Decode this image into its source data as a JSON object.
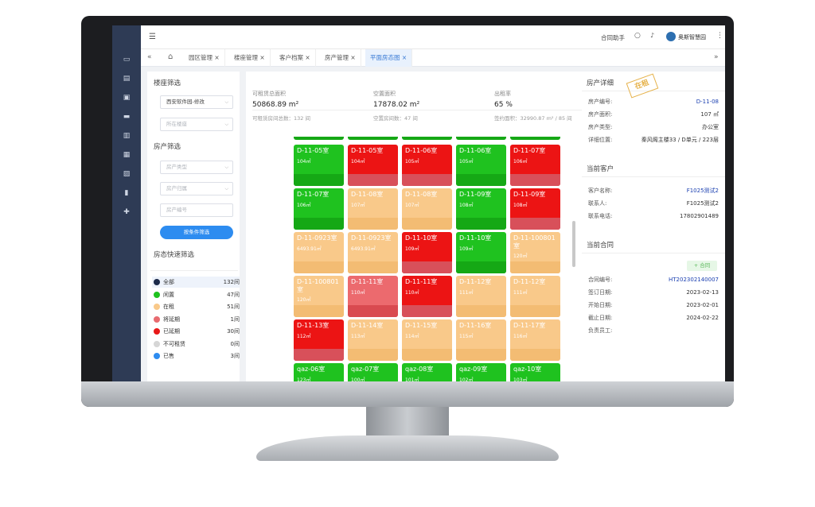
{
  "topbar": {
    "contract_assistant": "合同助手",
    "user_name": "奥斯智慧园"
  },
  "tabs": [
    {
      "label": "园区管理 ×"
    },
    {
      "label": "楼座管理 ×"
    },
    {
      "label": "客户档案 ×"
    },
    {
      "label": "房产管理 ×"
    },
    {
      "label": "平面房态图 ×"
    }
  ],
  "filters": {
    "building_title": "楼座筛选",
    "building_value": "西安软件园-修改",
    "floor_placeholder": "所在楼座",
    "property_title": "房产筛选",
    "type_placeholder": "房产类型",
    "owner_placeholder": "房产归属",
    "number_placeholder": "房产编号",
    "search_button": "按条件筛选",
    "quick_title": "房态快速筛选"
  },
  "legend": [
    {
      "label": "全部",
      "count": "132间",
      "color": "#1c2a4a"
    },
    {
      "label": "闲置",
      "count": "47间",
      "color": "#1fc21f"
    },
    {
      "label": "在租",
      "count": "51间",
      "color": "#f9c98a"
    },
    {
      "label": "将延期",
      "count": "1间",
      "color": "#e86b70"
    },
    {
      "label": "已延期",
      "count": "30间",
      "color": "#e81818"
    },
    {
      "label": "不可租赁",
      "count": "0间",
      "color": "#d6d6d6"
    },
    {
      "label": "已售",
      "count": "3间",
      "color": "#2d8cf0"
    }
  ],
  "stats": [
    {
      "label": "可租赁总面积",
      "value": "50868.89 m²",
      "sub": "可租赁房间总数：132 间"
    },
    {
      "label": "空置面积",
      "value": "17878.02 m²",
      "sub": "空置房间数：47 间"
    },
    {
      "label": "出租率",
      "value": "65 %",
      "sub": "签约面积：32990.87 m² / 85 间"
    }
  ],
  "rooms": [
    {
      "code": "D-11-05室",
      "area": "104㎡",
      "status": "vacant"
    },
    {
      "code": "D-11-05室",
      "area": "104㎡",
      "status": "overdue"
    },
    {
      "code": "D-11-06室",
      "area": "105㎡",
      "status": "overdue"
    },
    {
      "code": "D-11-06室",
      "area": "105㎡",
      "status": "vacant"
    },
    {
      "code": "D-11-07室",
      "area": "106㎡",
      "status": "overdue"
    },
    {
      "code": "D-11-07室",
      "area": "106㎡",
      "status": "vacant"
    },
    {
      "code": "D-11-08室",
      "area": "107㎡",
      "status": "rented"
    },
    {
      "code": "D-11-08室",
      "area": "107㎡",
      "status": "rented"
    },
    {
      "code": "D-11-09室",
      "area": "108㎡",
      "status": "vacant"
    },
    {
      "code": "D-11-09室",
      "area": "108㎡",
      "status": "overdue"
    },
    {
      "code": "D-11-0923室",
      "area": "6493.91㎡",
      "status": "rented"
    },
    {
      "code": "D-11-0923室",
      "area": "6493.91㎡",
      "status": "rented"
    },
    {
      "code": "D-11-10室",
      "area": "109㎡",
      "status": "overdue"
    },
    {
      "code": "D-11-10室",
      "area": "109㎡",
      "status": "vacant"
    },
    {
      "code": "D-11-100801室",
      "area": "120㎡",
      "status": "rented"
    },
    {
      "code": "D-11-100801室",
      "area": "120㎡",
      "status": "rented"
    },
    {
      "code": "D-11-11室",
      "area": "110㎡",
      "status": "expiring"
    },
    {
      "code": "D-11-11室",
      "area": "110㎡",
      "status": "overdue"
    },
    {
      "code": "D-11-12室",
      "area": "111㎡",
      "status": "rented"
    },
    {
      "code": "D-11-12室",
      "area": "111㎡",
      "status": "rented"
    },
    {
      "code": "D-11-13室",
      "area": "112㎡",
      "status": "overdue"
    },
    {
      "code": "D-11-14室",
      "area": "113㎡",
      "status": "rented"
    },
    {
      "code": "D-11-15室",
      "area": "114㎡",
      "status": "rented"
    },
    {
      "code": "D-11-16室",
      "area": "115㎡",
      "status": "rented"
    },
    {
      "code": "D-11-17室",
      "area": "116㎡",
      "status": "rented"
    },
    {
      "code": "qaz-06室",
      "area": "123㎡",
      "status": "vacant"
    },
    {
      "code": "qaz-07室",
      "area": "100㎡",
      "status": "vacant"
    },
    {
      "code": "qaz-08室",
      "area": "101㎡",
      "status": "vacant"
    },
    {
      "code": "qaz-09室",
      "area": "102㎡",
      "status": "vacant"
    },
    {
      "code": "qaz-10室",
      "area": "103㎡",
      "status": "vacant"
    }
  ],
  "status_colors": {
    "vacant": {
      "top": "#1fc21f",
      "bottom": "#15a815"
    },
    "overdue": {
      "top": "#ec1414",
      "bottom": "#d8505a"
    },
    "rented": {
      "top": "#f9c98a",
      "bottom": "#f3bc73"
    },
    "expiring": {
      "top": "#ec6a6e",
      "bottom": "#d94a50"
    }
  },
  "property_detail": {
    "title": "房产详细",
    "stamp": "在租",
    "rows": [
      {
        "k": "房产编号:",
        "v": "D-11-08"
      },
      {
        "k": "房产面积:",
        "v": "107 ㎡"
      },
      {
        "k": "房产类型:",
        "v": "办公室"
      },
      {
        "k": "详细位置:",
        "v": "秦风阁主楼33 / D单元 / 223层"
      }
    ]
  },
  "customer": {
    "title": "当前客户",
    "rows": [
      {
        "k": "客户名称:",
        "v": "F1025测试2"
      },
      {
        "k": "联系人:",
        "v": "F1025测试2"
      },
      {
        "k": "联系电话:",
        "v": "17802901489"
      }
    ]
  },
  "contract": {
    "title": "当前合同",
    "add_button": "+ 合同",
    "rows": [
      {
        "k": "合同编号:",
        "v": "HT202302140007"
      },
      {
        "k": "签订日期:",
        "v": "2023-02-13"
      },
      {
        "k": "开始日期:",
        "v": "2023-02-01"
      },
      {
        "k": "截止日期:",
        "v": "2024-02-22"
      },
      {
        "k": "负责员工:",
        "v": ""
      }
    ]
  }
}
